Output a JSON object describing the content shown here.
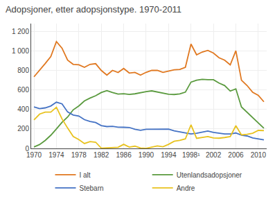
{
  "chart_data": {
    "type": "line",
    "title": "Adopsjoner, etter adopsjonstype. 1970-2011",
    "x": [
      1970,
      1971,
      1972,
      1973,
      1974,
      1975,
      1976,
      1977,
      1978,
      1979,
      1980,
      1981,
      1982,
      1983,
      1984,
      1985,
      1986,
      1987,
      1988,
      1989,
      1990,
      1991,
      1992,
      1993,
      1994,
      1995,
      1996,
      1997,
      1998,
      1999,
      2000,
      2001,
      2002,
      2003,
      2004,
      2005,
      2006,
      2007,
      2008,
      2009,
      2010,
      2011
    ],
    "series": [
      {
        "name": "I alt",
        "color": "#e07820",
        "values": [
          734,
          800,
          870,
          942,
          1096,
          1028,
          905,
          862,
          858,
          832,
          862,
          869,
          800,
          752,
          800,
          778,
          820,
          773,
          779,
          752,
          780,
          800,
          800,
          780,
          795,
          807,
          810,
          832,
          1070,
          960,
          988,
          1005,
          978,
          930,
          905,
          857,
          1002,
          700,
          645,
          575,
          545,
          478
        ]
      },
      {
        "name": "Utenlandsadopsjoner",
        "color": "#5a9a3e",
        "values": [
          15,
          40,
          82,
          135,
          200,
          268,
          322,
          396,
          436,
          487,
          516,
          540,
          573,
          593,
          573,
          558,
          561,
          554,
          560,
          572,
          583,
          590,
          577,
          566,
          555,
          553,
          559,
          577,
          680,
          700,
          709,
          705,
          705,
          670,
          645,
          588,
          611,
          425,
          372,
          312,
          263,
          207
        ]
      },
      {
        "name": "Stebarn",
        "color": "#4472c4",
        "values": [
          426,
          408,
          416,
          435,
          474,
          457,
          374,
          343,
          332,
          295,
          276,
          265,
          234,
          224,
          226,
          218,
          217,
          215,
          196,
          186,
          196,
          197,
          198,
          197,
          198,
          180,
          169,
          157,
          148,
          156,
          167,
          178,
          165,
          155,
          148,
          148,
          158,
          136,
          128,
          107,
          97,
          88
        ]
      },
      {
        "name": "Andre",
        "color": "#e8c21e",
        "values": [
          293,
          352,
          372,
          372,
          422,
          303,
          209,
          123,
          90,
          50,
          70,
          64,
          3,
          5,
          11,
          12,
          42,
          14,
          23,
          4,
          1,
          13,
          25,
          17,
          42,
          74,
          82,
          98,
          242,
          104,
          112,
          122,
          108,
          105,
          112,
          121,
          233,
          139,
          145,
          156,
          185,
          183
        ]
      }
    ],
    "xlim": [
      1969.5,
      2011.5
    ],
    "xticks": [
      1970,
      1974,
      1978,
      1982,
      1986,
      1990,
      1994,
      {
        "value": 1998,
        "label": "1998¹"
      },
      2002,
      2006,
      2010
    ],
    "ylim": [
      0,
      1280
    ],
    "yticks": [
      0,
      200,
      400,
      600,
      800,
      {
        "value": 1000,
        "label": "1 000"
      },
      {
        "value": 1200,
        "label": "1 200"
      }
    ],
    "grid": true,
    "legend": "bottom"
  }
}
